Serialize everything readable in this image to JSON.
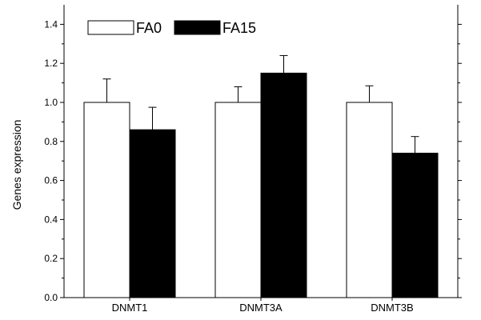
{
  "chart_data": {
    "type": "bar",
    "title": "",
    "xlabel": "",
    "ylabel": "Genes expression",
    "ylim": [
      0,
      1.5
    ],
    "yticks": [
      "0.0",
      "0.2",
      "0.4",
      "0.6",
      "0.8",
      "1.0",
      "1.2",
      "1.4"
    ],
    "categories": [
      "DNMT1",
      "DNMT3A",
      "DNMT3B"
    ],
    "series": [
      {
        "name": "FA0",
        "color": "#ffffff",
        "values": [
          1.0,
          1.0,
          1.0
        ],
        "errors": [
          0.12,
          0.08,
          0.085
        ]
      },
      {
        "name": "FA15",
        "color": "#000000",
        "values": [
          0.86,
          1.15,
          0.74
        ],
        "errors": [
          0.115,
          0.09,
          0.085
        ]
      }
    ],
    "legend": "top-left",
    "grid": false
  }
}
